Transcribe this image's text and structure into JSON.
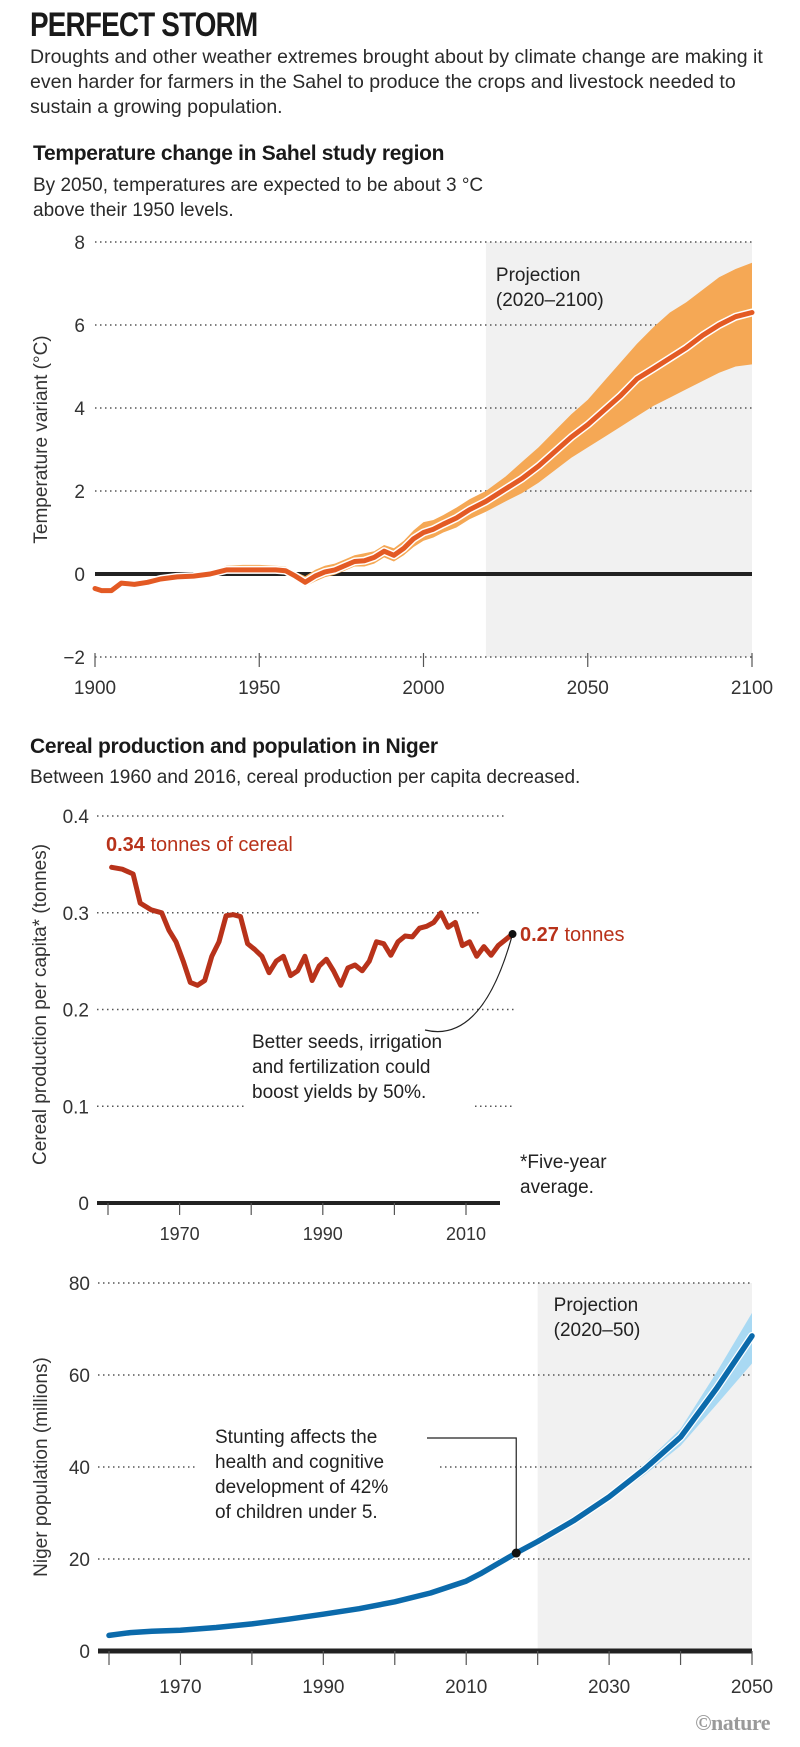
{
  "header": {
    "title": "PERFECT STORM",
    "intro": "Droughts and other weather extremes brought about by climate change are making it even harder for farmers in the Sahel to produce the crops and livestock needed to sustain a growing population."
  },
  "credit": "©nature",
  "colors": {
    "temp_line": "#e35a24",
    "temp_band": "#f5a855",
    "cereal_line": "#b8321a",
    "pop_line": "#0b6aab",
    "pop_band": "#a9d9f3",
    "projection_bg": "#f1f1f1",
    "axis": "#222222",
    "grid": "#555555",
    "annotation": "#222222"
  },
  "chart_data": [
    {
      "id": "temperature",
      "type": "area",
      "title": "Temperature change in Sahel study region",
      "subtitle": "By 2050, temperatures are expected to be about 3 °C above their 1950 levels.",
      "xlabel": "",
      "ylabel": "Temperature variant (°C)",
      "xlim": [
        1900,
        2100
      ],
      "ylim": [
        -2,
        8
      ],
      "xticks": [
        1900,
        1950,
        2000,
        2050,
        2100
      ],
      "yticks": [
        -2,
        0,
        2,
        4,
        6,
        8
      ],
      "grid": true,
      "projection": {
        "label_line1": "Projection",
        "label_line2": "(2020–2100)",
        "start": 2019,
        "end": 2100
      },
      "x": [
        1900,
        1902,
        1905,
        1908,
        1912,
        1916,
        1920,
        1925,
        1930,
        1935,
        1940,
        1945,
        1950,
        1955,
        1958,
        1961,
        1964,
        1967,
        1970,
        1973,
        1976,
        1979,
        1982,
        1985,
        1988,
        1991,
        1994,
        1997,
        2000,
        2003,
        2006,
        2010,
        2014,
        2019,
        2025,
        2030,
        2035,
        2040,
        2045,
        2050,
        2055,
        2060,
        2065,
        2070,
        2075,
        2080,
        2085,
        2090,
        2095,
        2100
      ],
      "series": [
        {
          "name": "mean",
          "values": [
            -0.35,
            -0.4,
            -0.4,
            -0.22,
            -0.25,
            -0.2,
            -0.12,
            -0.07,
            -0.05,
            0.0,
            0.1,
            0.1,
            0.1,
            0.1,
            0.08,
            -0.05,
            -0.2,
            -0.05,
            0.05,
            0.1,
            0.2,
            0.3,
            0.32,
            0.4,
            0.55,
            0.45,
            0.62,
            0.85,
            1.0,
            1.08,
            1.2,
            1.35,
            1.55,
            1.75,
            2.05,
            2.3,
            2.6,
            2.95,
            3.3,
            3.6,
            3.95,
            4.3,
            4.7,
            4.95,
            5.2,
            5.45,
            5.75,
            6.0,
            6.2,
            6.3
          ]
        },
        {
          "name": "upper",
          "values": [
            -0.3,
            -0.35,
            -0.33,
            -0.15,
            -0.18,
            -0.12,
            -0.05,
            0.0,
            0.0,
            0.08,
            0.2,
            0.22,
            0.22,
            0.2,
            0.18,
            0.05,
            -0.05,
            0.1,
            0.2,
            0.25,
            0.35,
            0.45,
            0.5,
            0.55,
            0.7,
            0.62,
            0.8,
            1.05,
            1.25,
            1.3,
            1.42,
            1.6,
            1.8,
            2.0,
            2.35,
            2.7,
            3.05,
            3.45,
            3.85,
            4.2,
            4.65,
            5.1,
            5.55,
            5.95,
            6.3,
            6.55,
            6.85,
            7.15,
            7.35,
            7.5
          ]
        },
        {
          "name": "lower",
          "values": [
            -0.4,
            -0.45,
            -0.47,
            -0.3,
            -0.32,
            -0.28,
            -0.2,
            -0.12,
            -0.1,
            -0.05,
            0.02,
            0.02,
            0.02,
            0.02,
            0.0,
            -0.12,
            -0.3,
            -0.18,
            -0.08,
            -0.02,
            0.08,
            0.18,
            0.18,
            0.25,
            0.4,
            0.3,
            0.45,
            0.65,
            0.8,
            0.88,
            1.0,
            1.12,
            1.32,
            1.5,
            1.75,
            1.95,
            2.2,
            2.5,
            2.8,
            3.05,
            3.3,
            3.55,
            3.8,
            4.05,
            4.25,
            4.45,
            4.65,
            4.85,
            5.0,
            5.05
          ]
        }
      ]
    },
    {
      "id": "cereal",
      "type": "line",
      "title": "Cereal production and population in Niger",
      "subtitle": "Between 1960 and 2016, cereal production per capita decreased.",
      "xlabel": "",
      "ylabel": "Cereal production per capita* (tonnes)",
      "xlim": [
        1958.5,
        2015
      ],
      "ylim": [
        0,
        0.4
      ],
      "xticks": [
        1960,
        1970,
        1980,
        1990,
        2000,
        2010
      ],
      "xtick_labels": [
        "",
        "1970",
        "",
        "1990",
        "",
        "2010"
      ],
      "yticks": [
        0,
        0.1,
        0.2,
        0.3,
        0.4
      ],
      "ytick_labels": [
        "0",
        "0.1",
        "0.2",
        "0.3",
        "0.4"
      ],
      "grid": true,
      "start_label": {
        "value": "0.34",
        "text": " tonnes of cereal"
      },
      "end_label": {
        "value": "0.27",
        "text": " tonnes"
      },
      "annotation": [
        "Better seeds, irrigation",
        "and fertilization could",
        "boost yields by 50%."
      ],
      "footnote": [
        "*Five-year",
        "average."
      ],
      "x": [
        1960.5,
        1962,
        1963.5,
        1964.5,
        1966,
        1967.5,
        1968.5,
        1969.5,
        1970.5,
        1971.5,
        1972.5,
        1973.5,
        1974.5,
        1975.5,
        1976.5,
        1977.5,
        1978.5,
        1979.5,
        1980.5,
        1981.5,
        1982.5,
        1983.5,
        1984.5,
        1985.5,
        1986.5,
        1987.5,
        1988.5,
        1989.5,
        1990.5,
        1991.5,
        1992.5,
        1993.5,
        1994.5,
        1995.5,
        1996.5,
        1997.5,
        1998.5,
        1999.5,
        2000.5,
        2001.5,
        2002.5,
        2003.5,
        2004.5,
        2005.5,
        2006.5,
        2007.5,
        2008.5,
        2009.5,
        2010.5,
        2011.5,
        2012.5,
        2013.5,
        2014.5,
        2015.5,
        2016.5
      ],
      "values": [
        0.347,
        0.345,
        0.34,
        0.31,
        0.303,
        0.3,
        0.282,
        0.27,
        0.25,
        0.228,
        0.225,
        0.23,
        0.255,
        0.27,
        0.297,
        0.298,
        0.296,
        0.268,
        0.262,
        0.255,
        0.238,
        0.25,
        0.255,
        0.235,
        0.24,
        0.255,
        0.23,
        0.245,
        0.252,
        0.24,
        0.225,
        0.243,
        0.246,
        0.24,
        0.25,
        0.27,
        0.268,
        0.256,
        0.27,
        0.276,
        0.275,
        0.284,
        0.286,
        0.29,
        0.3,
        0.285,
        0.29,
        0.266,
        0.27,
        0.255,
        0.265,
        0.256,
        0.266,
        0.272,
        0.278
      ]
    },
    {
      "id": "population",
      "type": "line",
      "title": "",
      "xlabel": "",
      "ylabel": "Niger population (millions)",
      "xlim": [
        1958.5,
        2050
      ],
      "ylim": [
        0,
        80
      ],
      "xticks": [
        1960,
        1970,
        1980,
        1990,
        2000,
        2010,
        2020,
        2030,
        2040,
        2050
      ],
      "xtick_labels": [
        "",
        "1970",
        "",
        "1990",
        "",
        "2010",
        "",
        "2030",
        "",
        "2050"
      ],
      "yticks": [
        0,
        20,
        40,
        60,
        80
      ],
      "grid": true,
      "projection": {
        "label_line1": "Projection",
        "label_line2": "(2020–50)",
        "start": 2020,
        "end": 2050
      },
      "annotation": {
        "lines": [
          "Stunting affects the",
          "health and cognitive",
          "development of 42%",
          "of children under 5."
        ],
        "point_year": 2017,
        "point_value": 21.3
      },
      "x": [
        1960,
        1963,
        1966,
        1970,
        1975,
        1980,
        1985,
        1990,
        1995,
        2000,
        2005,
        2010,
        2012,
        2014,
        2017,
        2020,
        2025,
        2030,
        2035,
        2040,
        2045,
        2050
      ],
      "series": [
        {
          "name": "population",
          "values": [
            3.4,
            4.0,
            4.3,
            4.5,
            5.1,
            5.9,
            6.9,
            8.0,
            9.2,
            10.7,
            12.6,
            15.2,
            16.8,
            18.6,
            21.3,
            23.8,
            28.3,
            33.5,
            39.6,
            46.5,
            57.0,
            68.5
          ]
        },
        {
          "name": "upper",
          "values": [
            null,
            null,
            null,
            null,
            null,
            null,
            null,
            null,
            null,
            null,
            null,
            null,
            null,
            null,
            null,
            23.8,
            28.6,
            34.2,
            40.8,
            48.3,
            60.5,
            73.5
          ]
        },
        {
          "name": "lower",
          "values": [
            null,
            null,
            null,
            null,
            null,
            null,
            null,
            null,
            null,
            null,
            null,
            null,
            null,
            null,
            null,
            23.8,
            28.0,
            32.8,
            38.3,
            44.6,
            53.5,
            62.5
          ]
        }
      ]
    }
  ]
}
